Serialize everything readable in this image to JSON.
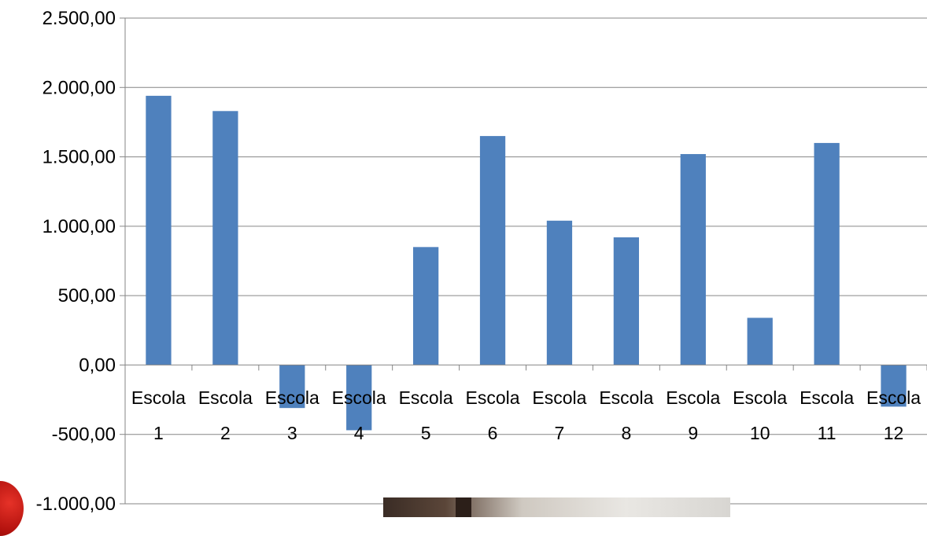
{
  "chart_data": {
    "type": "bar",
    "title": "",
    "xlabel": "",
    "ylabel": "",
    "categories": [
      [
        "Escola",
        "1"
      ],
      [
        "Escola",
        "2"
      ],
      [
        "Escola",
        "3"
      ],
      [
        "Escola",
        "4"
      ],
      [
        "Escola",
        "5"
      ],
      [
        "Escola",
        "6"
      ],
      [
        "Escola",
        "7"
      ],
      [
        "Escola",
        "8"
      ],
      [
        "Escola",
        "9"
      ],
      [
        "Escola",
        "10"
      ],
      [
        "Escola",
        "11"
      ],
      [
        "Escola",
        "12"
      ]
    ],
    "values": [
      1940,
      1830,
      -310,
      -470,
      850,
      1650,
      1040,
      920,
      1520,
      340,
      1600,
      -300
    ],
    "ylim": [
      -1000,
      2500
    ],
    "yticks": [
      -1000,
      -500,
      0,
      500,
      1000,
      1500,
      2000,
      2500
    ],
    "ytick_labels": [
      "-1.000,00",
      "-500,00",
      "0,00",
      "500,00",
      "1.000,00",
      "1.500,00",
      "2.000,00",
      "2.500,00"
    ],
    "grid": true,
    "legend": "none",
    "colors": {
      "bar": "#4F81BD",
      "grid": "#868686",
      "axis": "#868686"
    }
  },
  "background": {
    "photo_fragment_icon": "photo-fragment",
    "logo_fragment_icon": "red-swoosh-logo"
  }
}
